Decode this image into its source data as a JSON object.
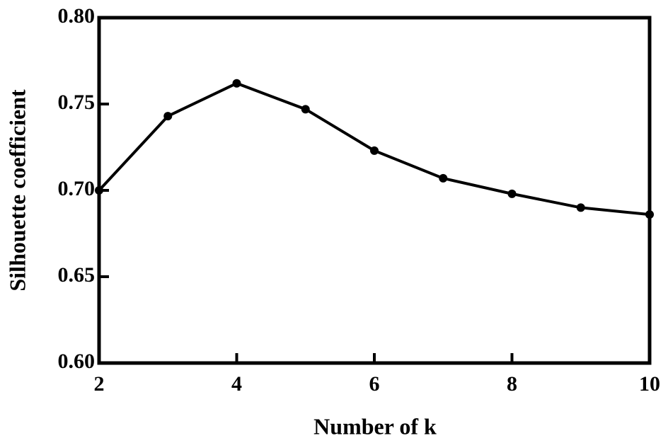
{
  "chart_data": {
    "type": "line",
    "x_label": "Number of k",
    "y_label": "Silhouette coefficient",
    "x": [
      2,
      3,
      4,
      5,
      6,
      7,
      8,
      9,
      10
    ],
    "series": [
      {
        "color": "#000000",
        "values": [
          0.7,
          0.743,
          0.762,
          0.747,
          0.723,
          0.707,
          0.698,
          0.69,
          0.686
        ]
      }
    ],
    "xlim": [
      2,
      10
    ],
    "xticks": [
      2,
      4,
      6,
      8,
      10
    ],
    "ylim": [
      0.6,
      0.8
    ],
    "yticks": [
      {
        "value": 0.6,
        "label": "0.60"
      },
      0.65,
      {
        "value": 0.7,
        "label": "0.70"
      },
      0.75,
      {
        "value": 0.8,
        "label": "0.80"
      }
    ],
    "grid": false
  }
}
